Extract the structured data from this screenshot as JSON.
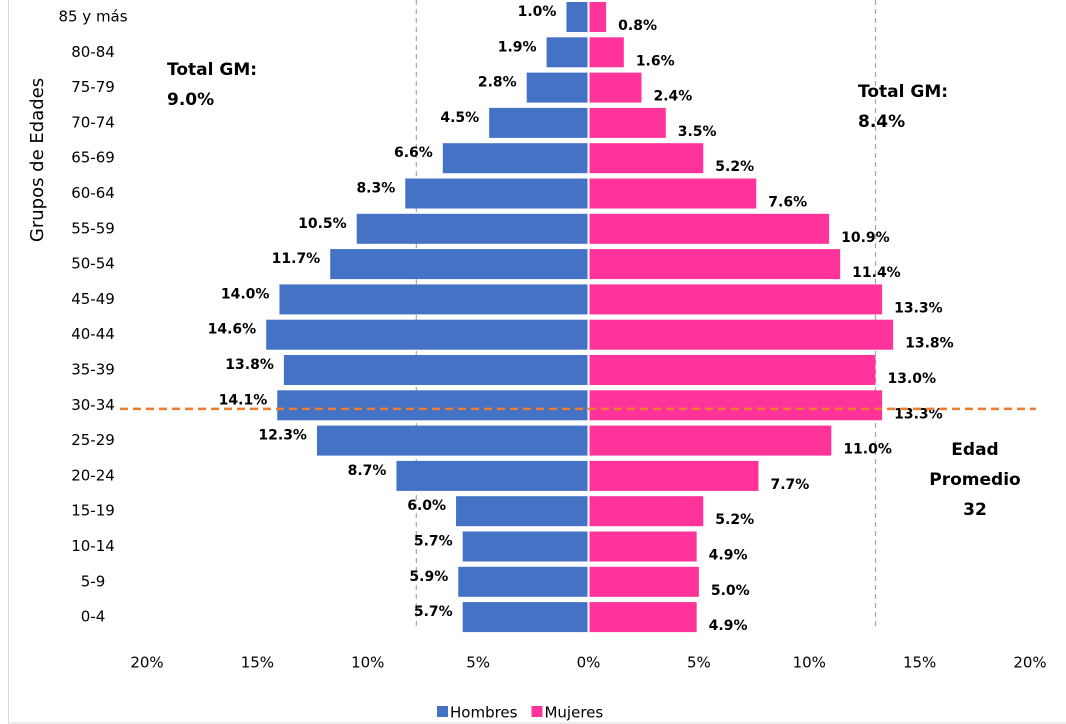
{
  "chart_data": {
    "type": "pyramid",
    "y_label": "Grupos de Edades",
    "categories": [
      "85 y más",
      "80-84",
      "75-79",
      "70-74",
      "65-69",
      "60-64",
      "55-59",
      "50-54",
      "45-49",
      "40-44",
      "35-39",
      "30-34",
      "25-29",
      "20-24",
      "15-19",
      "10-14",
      "5-9",
      "0-4"
    ],
    "series": [
      {
        "name": "Hombres",
        "color": "#4472c4",
        "side": "left",
        "values": [
          1.0,
          1.9,
          2.8,
          4.5,
          6.6,
          8.3,
          10.5,
          11.7,
          14.0,
          14.6,
          13.8,
          14.1,
          12.3,
          8.7,
          6.0,
          5.7,
          5.9,
          5.7
        ],
        "value_labels": [
          "1.0%",
          "1.9%",
          "2.8%",
          "4.5%",
          "6.6%",
          "8.3%",
          "10.5%",
          "11.7%",
          "14.0%",
          "14.6%",
          "13.8%",
          "14.1%",
          "12.3%",
          "8.7%",
          "6.0%",
          "5.7%",
          "5.9%",
          "5.7%"
        ]
      },
      {
        "name": "Mujeres",
        "color": "#ff3399",
        "side": "right",
        "values": [
          0.8,
          1.6,
          2.4,
          3.5,
          5.2,
          7.6,
          10.9,
          11.4,
          13.3,
          13.8,
          13.0,
          13.3,
          11.0,
          7.7,
          5.2,
          4.9,
          5.0,
          4.9
        ],
        "value_labels": [
          "0.8%",
          "1.6%",
          "2.4%",
          "3.5%",
          "5.2%",
          "7.6%",
          "10.9%",
          "11.4%",
          "13.3%",
          "13.8%",
          "13.0%",
          "13.3%",
          "11.0%",
          "7.7%",
          "5.2%",
          "4.9%",
          "5.0%",
          "4.9%"
        ]
      }
    ],
    "xlim": [
      -20,
      20
    ],
    "xticks": [
      {
        "value": -20,
        "label": "20%"
      },
      {
        "value": -15,
        "label": "15%"
      },
      {
        "value": -10,
        "label": "10%"
      },
      {
        "value": -5,
        "label": "5%"
      },
      {
        "value": 0,
        "label": "0%"
      },
      {
        "value": 5,
        "label": "5%"
      },
      {
        "value": 10,
        "label": "10%"
      },
      {
        "value": 15,
        "label": "15%"
      },
      {
        "value": 20,
        "label": "20%"
      }
    ],
    "reference_lines": [
      -7.8,
      13.0
    ],
    "annotations": [
      {
        "lines": [
          "Total GM:",
          "9.0%"
        ],
        "color": "#4472c4"
      },
      {
        "lines": [
          "Total GM:",
          "8.4%"
        ],
        "color": "#ff3399"
      }
    ],
    "average_age": {
      "lines": [
        "Edad",
        "Promedio"
      ],
      "value": 32,
      "color": "#ed7d31"
    },
    "legend": "bottom"
  }
}
